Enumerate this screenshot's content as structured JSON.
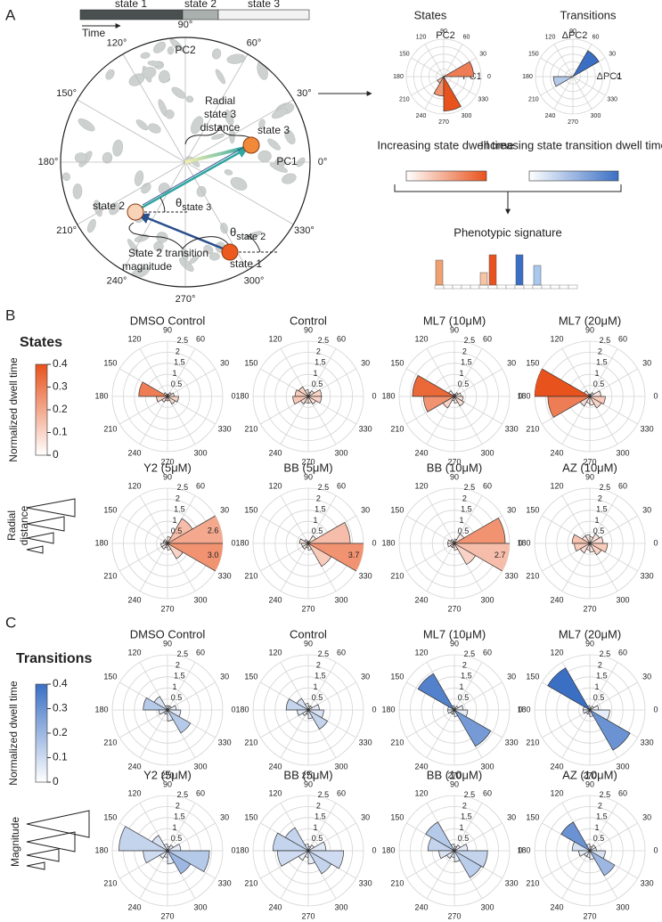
{
  "rose_axes": {
    "angles": [
      0,
      30,
      60,
      90,
      120,
      150,
      180,
      210,
      240,
      270,
      300,
      330
    ],
    "rings": [
      0.5,
      1,
      1.5,
      2,
      2.5
    ],
    "rlim": [
      0,
      2.5
    ]
  },
  "panel_a": {
    "label": "A",
    "timeline": {
      "states": [
        "state 1",
        "state 2",
        "state 3"
      ],
      "time": "Time"
    },
    "degree_ticks": [
      {
        "value": 0,
        "label": "0°"
      },
      {
        "value": 30,
        "label": "30°"
      },
      {
        "value": 60,
        "label": "60°"
      },
      {
        "value": 90,
        "label": "90°"
      },
      {
        "value": 120,
        "label": "120°"
      },
      {
        "value": 150,
        "label": "150°"
      },
      {
        "value": 180,
        "label": "180°"
      },
      {
        "value": 210,
        "label": "210°"
      },
      {
        "value": 240,
        "label": "240°"
      },
      {
        "value": 270,
        "label": "270°"
      },
      {
        "value": 300,
        "label": "300°"
      },
      {
        "value": 330,
        "label": "330°"
      }
    ],
    "axis_y": "PC2",
    "axis_x": "PC1",
    "radial_label": [
      "Radial",
      "state 3",
      "distance"
    ],
    "points": [
      "state 3",
      "state 2",
      "state 1"
    ],
    "theta": "θ",
    "theta_subs": [
      "state 3",
      "state 2"
    ],
    "transition_label": [
      "State 2 transition",
      "magnitude"
    ],
    "states_plot": {
      "title": "States",
      "axis_y": "PC2",
      "axis_x": "PC1",
      "values": [
        2.0,
        0,
        0,
        0,
        0,
        0,
        0,
        0.5,
        1.3,
        2.3,
        0,
        0
      ],
      "dwell": [
        0.3,
        0,
        0,
        0,
        0,
        0,
        0,
        0.15,
        0.25,
        0.4,
        0,
        0
      ]
    },
    "transitions_plot": {
      "title": "Transitions",
      "axis_y": "ΔPC2",
      "axis_x": "ΔPC1",
      "values": [
        0,
        2.0,
        0,
        0,
        0,
        0,
        1.3,
        0,
        0,
        0,
        0,
        0
      ],
      "dwell": [
        0,
        0.4,
        0,
        0,
        0,
        0,
        0.15,
        0,
        0,
        0,
        0,
        0
      ]
    },
    "bar_labels": [
      "Increasing state dwell time",
      "Increasing state transition dwell time"
    ],
    "signature": {
      "title": "Phenotypic signature",
      "values": [
        0.28,
        0,
        0,
        0,
        0,
        0.14,
        0.34,
        0,
        0,
        0.34,
        0,
        0.22,
        0,
        0,
        0,
        0
      ],
      "colors": [
        "#f0a070",
        "#ffffff",
        "#ffffff",
        "#ffffff",
        "#ffffff",
        "#f7c4a4",
        "#e8521c",
        "#ffffff",
        "#ffffff",
        "#3a6fc4",
        "#ffffff",
        "#a9c8ee",
        "#ffffff",
        "#ffffff",
        "#ffffff",
        "#ffffff"
      ]
    }
  },
  "panel_b": {
    "label": "B",
    "heading": "States",
    "colorbar": {
      "title": "Normalized dwell time",
      "lim": [
        0,
        0.4
      ],
      "ticks": [
        0,
        0.1,
        0.2,
        0.3,
        0.4
      ],
      "color": "#e8521c"
    },
    "icon_label": [
      "Radial",
      "distance"
    ],
    "plots": [
      {
        "title": "DMSO Control",
        "values": [
          0.3,
          0.2,
          0.1,
          0.1,
          0.2,
          1.3,
          0.5,
          0.3,
          0.2,
          0.2,
          0.4,
          0.5
        ],
        "dwell": [
          0.05,
          0.03,
          0.02,
          0.02,
          0.03,
          0.3,
          0.1,
          0.06,
          0.04,
          0.04,
          0.08,
          0.1
        ]
      },
      {
        "title": "Control",
        "values": [
          0.6,
          0.3,
          0.2,
          0.3,
          0.5,
          0.6,
          0.7,
          0.4,
          0.3,
          0.3,
          0.4,
          0.6
        ],
        "dwell": [
          0.1,
          0.05,
          0.03,
          0.05,
          0.1,
          0.12,
          0.13,
          0.08,
          0.05,
          0.05,
          0.07,
          0.1
        ]
      },
      {
        "title": "ML7 (10μM)",
        "values": [
          0.3,
          0.2,
          0.1,
          0.1,
          0.3,
          1.9,
          1.4,
          0.6,
          0.2,
          0.3,
          0.5,
          0.4
        ],
        "dwell": [
          0.04,
          0.03,
          0.02,
          0.02,
          0.05,
          0.35,
          0.25,
          0.1,
          0.03,
          0.04,
          0.08,
          0.06
        ]
      },
      {
        "title": "ML7 (20μM)",
        "values": [
          0.5,
          0.2,
          0.1,
          0.1,
          0.3,
          2.5,
          1.9,
          0.5,
          0.3,
          0.4,
          0.6,
          0.7
        ],
        "dwell": [
          0.05,
          0.03,
          0.02,
          0.02,
          0.05,
          0.4,
          0.3,
          0.08,
          0.03,
          0.05,
          0.1,
          0.12
        ]
      },
      {
        "title": "Y2 (5μM)",
        "values": [
          2.6,
          1.3,
          0.3,
          0.1,
          0.2,
          0.2,
          0.3,
          0.3,
          0.2,
          0.3,
          0.8,
          3.0
        ],
        "value_labels": [
          "2.6",
          null,
          null,
          null,
          null,
          null,
          null,
          null,
          null,
          null,
          null,
          "3.0"
        ],
        "dwell": [
          0.2,
          0.15,
          0.05,
          0.02,
          0.02,
          0.02,
          0.03,
          0.03,
          0.02,
          0.04,
          0.1,
          0.25
        ]
      },
      {
        "title": "BB (5μM)",
        "values": [
          1.9,
          0.4,
          0.1,
          0.1,
          0.2,
          0.4,
          0.3,
          0.3,
          0.2,
          0.3,
          1.2,
          3.7
        ],
        "value_labels": [
          null,
          null,
          null,
          null,
          null,
          null,
          null,
          null,
          null,
          null,
          null,
          "3.7"
        ],
        "dwell": [
          0.15,
          0.05,
          0.02,
          0.02,
          0.03,
          0.05,
          0.04,
          0.04,
          0.03,
          0.04,
          0.12,
          0.25
        ]
      },
      {
        "title": "BB (10μM)",
        "values": [
          2.3,
          0.5,
          0.2,
          0.1,
          0.2,
          0.3,
          0.3,
          0.2,
          0.2,
          0.3,
          1.1,
          2.7
        ],
        "value_labels": [
          null,
          null,
          null,
          null,
          null,
          null,
          null,
          null,
          null,
          null,
          null,
          "2.7"
        ],
        "dwell": [
          0.25,
          0.05,
          0.02,
          0.02,
          0.03,
          0.04,
          0.04,
          0.03,
          0.03,
          0.04,
          0.1,
          0.15
        ]
      },
      {
        "title": "AZ (10μM)",
        "values": [
          0.6,
          0.5,
          0.3,
          0.4,
          0.4,
          0.8,
          0.7,
          0.5,
          0.3,
          0.4,
          0.6,
          0.8
        ],
        "dwell": [
          0.08,
          0.06,
          0.04,
          0.05,
          0.06,
          0.14,
          0.12,
          0.08,
          0.04,
          0.06,
          0.1,
          0.12
        ]
      }
    ]
  },
  "panel_c": {
    "label": "C",
    "heading": "Transitions",
    "colorbar": {
      "title": "Normalized dwell time",
      "lim": [
        0,
        0.4
      ],
      "ticks": [
        0,
        0.1,
        0.2,
        0.3,
        0.4
      ],
      "color": "#3a6fc4"
    },
    "icon_label": [
      "Magnitude"
    ],
    "plots": [
      {
        "title": "DMSO Control",
        "values": [
          0.4,
          0.2,
          0.2,
          0.2,
          0.7,
          1.1,
          0.4,
          0.2,
          0.2,
          0.5,
          1.2,
          0.6
        ],
        "dwell": [
          0.04,
          0.02,
          0.02,
          0.02,
          0.08,
          0.15,
          0.05,
          0.02,
          0.02,
          0.05,
          0.15,
          0.06
        ]
      },
      {
        "title": "Control",
        "values": [
          0.5,
          0.2,
          0.2,
          0.3,
          0.6,
          1.0,
          0.5,
          0.3,
          0.2,
          0.4,
          1.0,
          0.7
        ],
        "dwell": [
          0.06,
          0.02,
          0.02,
          0.03,
          0.08,
          0.12,
          0.06,
          0.03,
          0.02,
          0.05,
          0.12,
          0.08
        ]
      },
      {
        "title": "ML7 (10μM)",
        "values": [
          0.4,
          0.2,
          0.1,
          0.2,
          1.9,
          0.3,
          0.3,
          0.2,
          0.2,
          0.3,
          1.9,
          0.6
        ],
        "dwell": [
          0.03,
          0.02,
          0.01,
          0.02,
          0.35,
          0.03,
          0.03,
          0.02,
          0.02,
          0.03,
          0.28,
          0.05
        ]
      },
      {
        "title": "ML7 (20μM)",
        "values": [
          0.4,
          0.2,
          0.1,
          0.2,
          2.2,
          0.3,
          0.3,
          0.2,
          0.2,
          0.3,
          2.1,
          0.9
        ],
        "dwell": [
          0.03,
          0.02,
          0.01,
          0.02,
          0.4,
          0.03,
          0.03,
          0.02,
          0.02,
          0.03,
          0.3,
          0.05
        ]
      },
      {
        "title": "Y2 (5μM)",
        "values": [
          0.6,
          0.3,
          0.2,
          0.3,
          0.8,
          2.2,
          1.1,
          0.4,
          0.3,
          0.6,
          1.2,
          1.9
        ],
        "dwell": [
          0.05,
          0.03,
          0.02,
          0.03,
          0.08,
          0.12,
          0.1,
          0.04,
          0.03,
          0.06,
          0.2,
          0.15
        ]
      },
      {
        "title": "BB (5μM)",
        "values": [
          0.8,
          0.3,
          0.2,
          0.3,
          1.2,
          1.6,
          1.4,
          0.5,
          0.3,
          0.6,
          1.2,
          1.6
        ],
        "dwell": [
          0.06,
          0.03,
          0.02,
          0.03,
          0.12,
          0.12,
          0.1,
          0.04,
          0.03,
          0.05,
          0.12,
          0.1
        ]
      },
      {
        "title": "BB (10μM)",
        "values": [
          0.6,
          0.3,
          0.2,
          0.3,
          1.5,
          1.2,
          0.7,
          0.4,
          0.3,
          0.5,
          1.4,
          1.5
        ],
        "dwell": [
          0.05,
          0.03,
          0.02,
          0.03,
          0.15,
          0.12,
          0.08,
          0.04,
          0.03,
          0.05,
          0.14,
          0.12
        ]
      },
      {
        "title": "AZ (10μM)",
        "values": [
          0.3,
          0.3,
          0.2,
          0.3,
          1.5,
          0.8,
          0.5,
          0.3,
          0.3,
          0.4,
          1.3,
          0.7
        ],
        "dwell": [
          0.04,
          0.03,
          0.02,
          0.03,
          0.3,
          0.08,
          0.05,
          0.03,
          0.03,
          0.04,
          0.2,
          0.08
        ]
      }
    ]
  }
}
